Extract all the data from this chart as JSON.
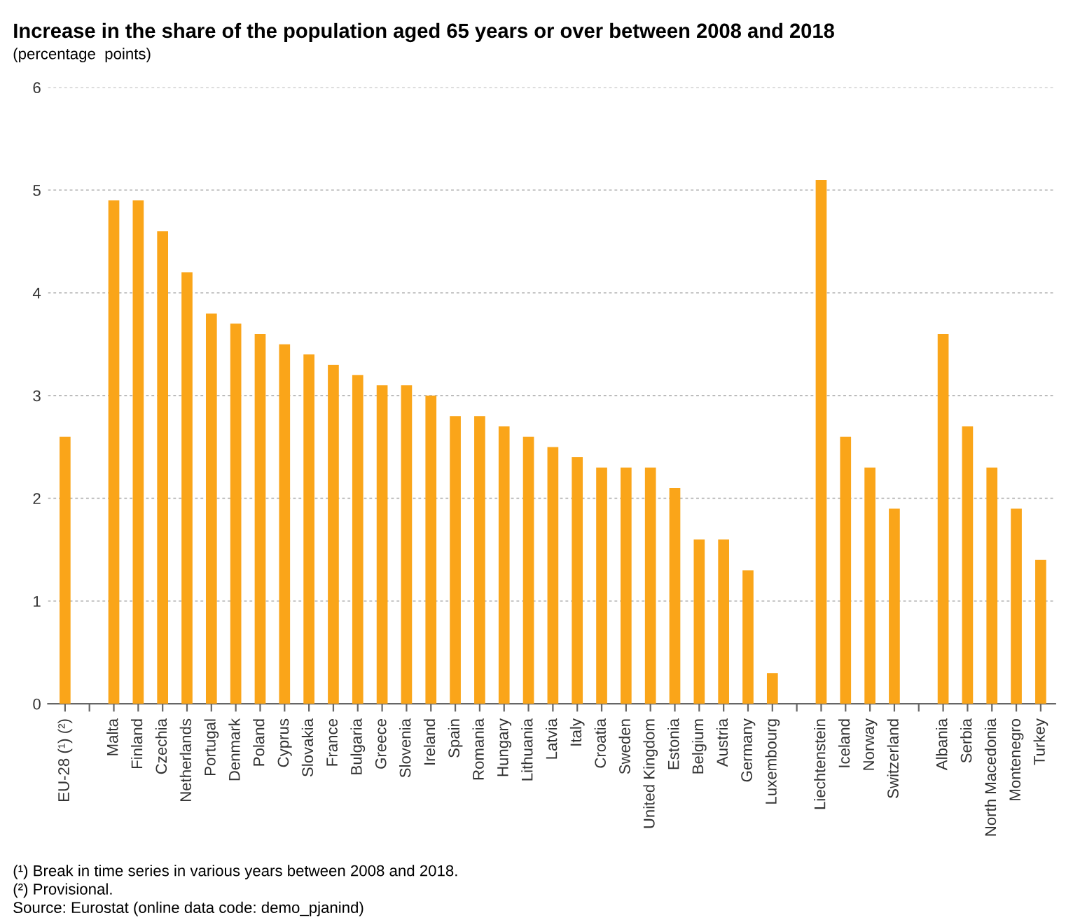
{
  "chart_data": {
    "type": "bar",
    "title": "Increase in the share of the population aged 65 years or over between 2008 and 2018",
    "subtitle": "(percentage  points)",
    "categories": [
      "EU-28 (¹) (²)",
      null,
      "Malta",
      "Finland",
      "Czechia",
      "Netherlands",
      "Portugal",
      "Denmark",
      "Poland",
      "Cyprus",
      "Slovakia",
      "France",
      "Bulgaria",
      "Greece",
      "Slovenia",
      "Ireland",
      "Spain",
      "Romania",
      "Hungary",
      "Lithuania",
      "Latvia",
      "Italy",
      "Croatia",
      "Sweden",
      "United Kingdom",
      "Estonia",
      "Belgium",
      "Austria",
      "Germany",
      "Luxembourg",
      null,
      "Liechtenstein",
      "Iceland",
      "Norway",
      "Switzerland",
      null,
      "Albania",
      "Serbia",
      "North Macedonia",
      "Montenegro",
      "Turkey"
    ],
    "values": [
      2.6,
      null,
      4.9,
      4.9,
      4.6,
      4.2,
      3.8,
      3.7,
      3.6,
      3.5,
      3.4,
      3.3,
      3.2,
      3.1,
      3.1,
      3.0,
      2.8,
      2.8,
      2.7,
      2.6,
      2.5,
      2.4,
      2.3,
      2.3,
      2.3,
      2.1,
      1.6,
      1.6,
      1.3,
      0.3,
      null,
      5.1,
      2.6,
      2.3,
      1.9,
      null,
      3.6,
      2.7,
      2.3,
      1.9,
      1.4
    ],
    "color": "#faa519",
    "ylim": [
      0,
      6
    ],
    "yticks": [
      0,
      1,
      2,
      3,
      4,
      5,
      6
    ],
    "grid": "y",
    "annotations": [
      "(¹) Break in time series in various years between 2008 and 2018.",
      "(²) Provisional.",
      "Source: Eurostat (online data code: demo_pjanind)"
    ]
  }
}
